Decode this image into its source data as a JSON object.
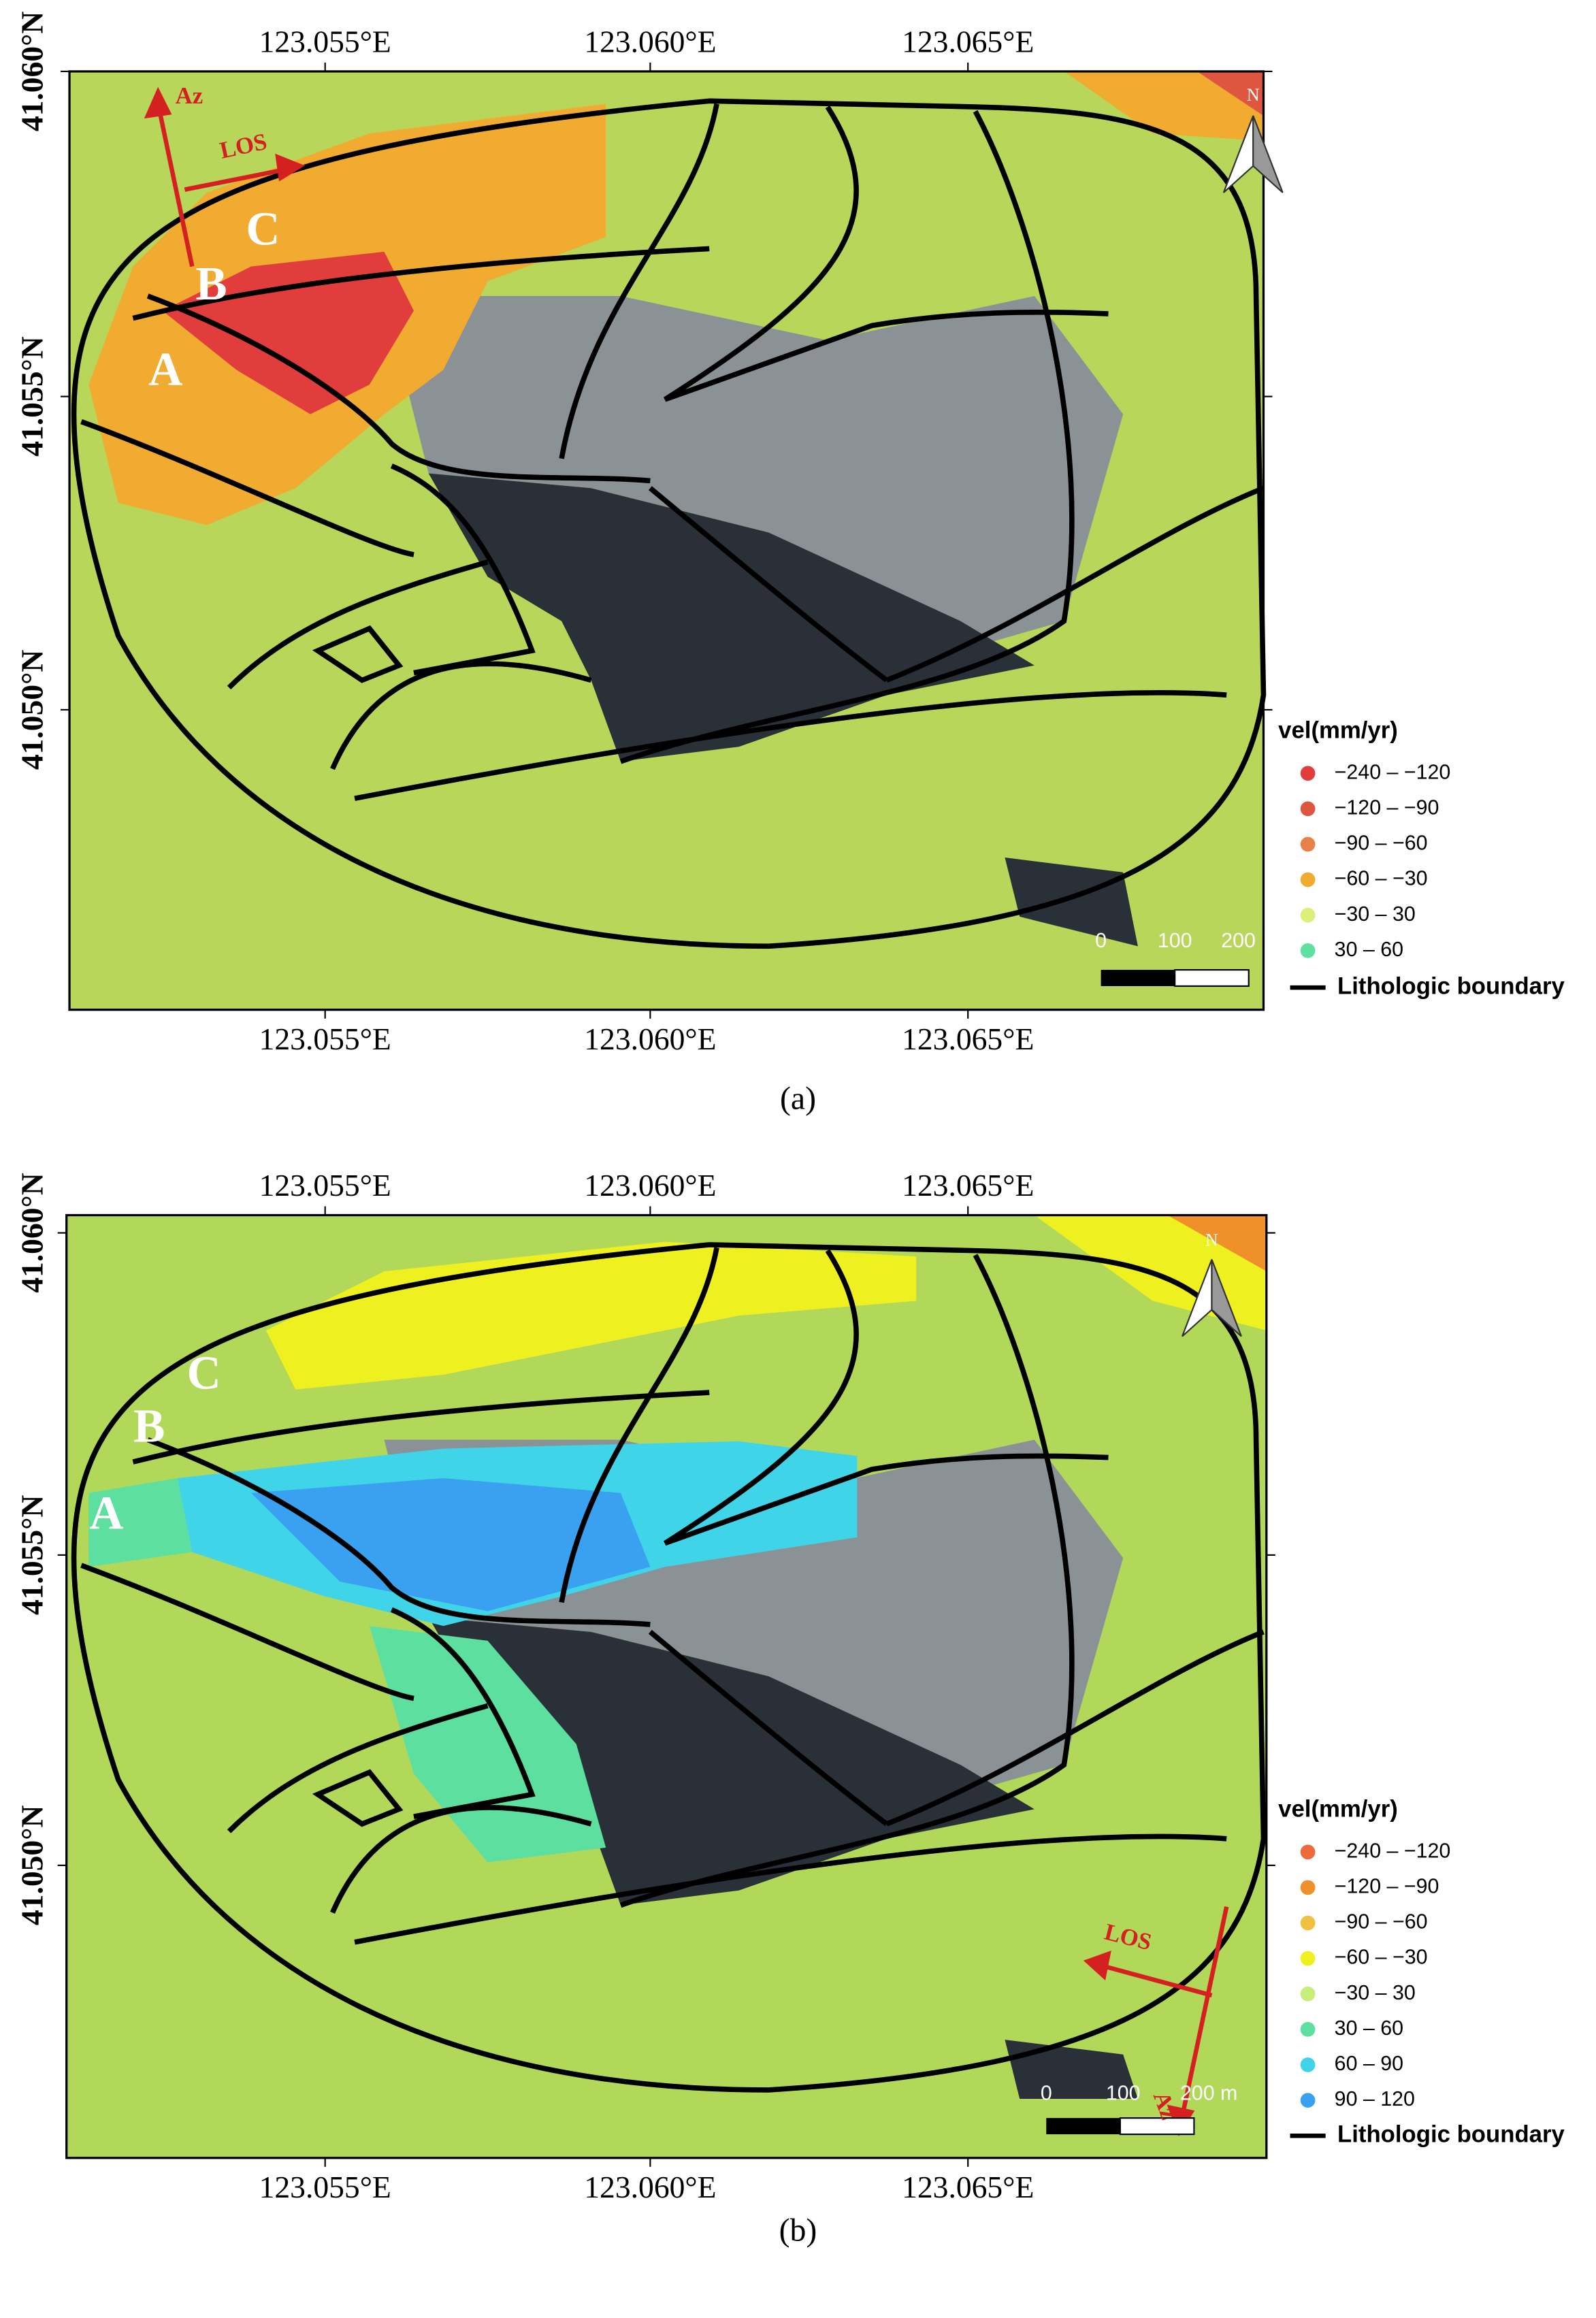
{
  "panels": [
    {
      "caption": "(a)",
      "x_tick_labels": [
        "123.055°E",
        "123.060°E",
        "123.065°E"
      ],
      "y_tick_labels": [
        "41.060°N",
        "41.055°N",
        "41.050°N"
      ],
      "point_labels": [
        "A",
        "B",
        "C"
      ],
      "arrow_labels": [
        "Az",
        "LOS"
      ],
      "north": "N",
      "scale_labels": [
        "0",
        "100",
        "200"
      ],
      "legend_title": "vel(mm/yr)",
      "legend": [
        {
          "label": "−240 – −120",
          "color": "#e23d3d"
        },
        {
          "label": "−120 – −90",
          "color": "#de5540"
        },
        {
          "label": "−90 – −60",
          "color": "#e8804a"
        },
        {
          "label": "−60 – −30",
          "color": "#f0ab30"
        },
        {
          "label": "−30 – 30",
          "color": "#dcef7a"
        },
        {
          "label": "30 – 60",
          "color": "#5fe0a0"
        }
      ],
      "boundary_label": "Lithologic boundary"
    },
    {
      "caption": "(b)",
      "x_tick_labels": [
        "123.055°E",
        "123.060°E",
        "123.065°E"
      ],
      "y_tick_labels": [
        "41.060°N",
        "41.055°N",
        "41.050°N"
      ],
      "point_labels": [
        "A",
        "B",
        "C"
      ],
      "arrow_labels": [
        "LOS",
        "Az"
      ],
      "north": "N",
      "scale_labels": [
        "0",
        "100",
        "200 m"
      ],
      "legend_title": "vel(mm/yr)",
      "legend": [
        {
          "label": "−240 – −120",
          "color": "#ec6a3c"
        },
        {
          "label": "−120 – −90",
          "color": "#f0902a"
        },
        {
          "label": "−90 – −60",
          "color": "#f0c040"
        },
        {
          "label": "−60 – −30",
          "color": "#eef020"
        },
        {
          "label": "−30 – 30",
          "color": "#c8ee7a"
        },
        {
          "label": "30 – 60",
          "color": "#5ddfa0"
        },
        {
          "label": "60 – 90",
          "color": "#40d4e8"
        },
        {
          "label": "90 – 120",
          "color": "#3aa0f0"
        }
      ],
      "boundary_label": "Lithologic boundary"
    }
  ]
}
